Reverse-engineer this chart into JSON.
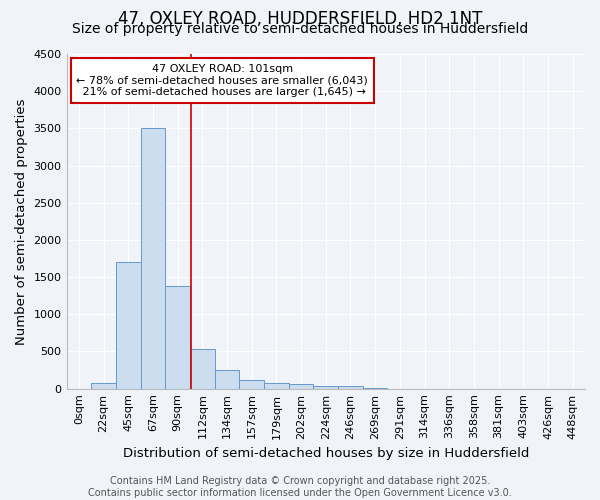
{
  "title1": "47, OXLEY ROAD, HUDDERSFIELD, HD2 1NT",
  "title2": "Size of property relative to semi-detached houses in Huddersfield",
  "xlabel": "Distribution of semi-detached houses by size in Huddersfield",
  "ylabel": "Number of semi-detached properties",
  "bar_labels": [
    "0sqm",
    "22sqm",
    "45sqm",
    "67sqm",
    "90sqm",
    "112sqm",
    "134sqm",
    "157sqm",
    "179sqm",
    "202sqm",
    "224sqm",
    "246sqm",
    "269sqm",
    "291sqm",
    "314sqm",
    "336sqm",
    "358sqm",
    "381sqm",
    "403sqm",
    "426sqm",
    "448sqm"
  ],
  "bar_values": [
    0,
    80,
    1700,
    3500,
    1380,
    530,
    250,
    120,
    80,
    60,
    40,
    30,
    5,
    2,
    1,
    0,
    0,
    0,
    0,
    0,
    0
  ],
  "bar_color": "#ccddef",
  "bar_edge_color": "#6699cc",
  "background_color": "#f0f4f8",
  "grid_color": "#ffffff",
  "vline_x": 4.55,
  "vline_color": "#cc0000",
  "annotation_text": "47 OXLEY ROAD: 101sqm\n← 78% of semi-detached houses are smaller (6,043)\n 21% of semi-detached houses are larger (1,645) →",
  "annotation_box_facecolor": "#ffffff",
  "annotation_border_color": "#cc0000",
  "ylim": [
    0,
    4500
  ],
  "yticks": [
    0,
    500,
    1000,
    1500,
    2000,
    2500,
    3000,
    3500,
    4000,
    4500
  ],
  "title1_fontsize": 12,
  "title2_fontsize": 10,
  "tick_fontsize": 8,
  "label_fontsize": 9.5,
  "footer_text": "Contains HM Land Registry data © Crown copyright and database right 2025.\nContains public sector information licensed under the Open Government Licence v3.0.",
  "footer_fontsize": 7
}
